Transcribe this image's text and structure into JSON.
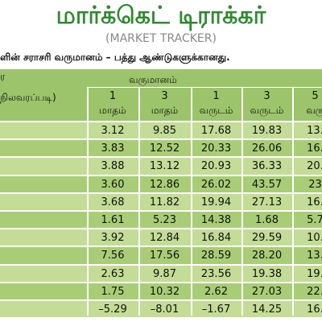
{
  "header": {
    "title": "மார்க்கெட் டிராக்கர்",
    "subtitle": "(MARKET TRACKER)",
    "caption": "ளின் சராசரி வருமானம் – பத்து ஆண்டுகளுக்கானது."
  },
  "table": {
    "corner": "ர",
    "corner_note": "நிலவரப்படி)",
    "group_header": "வருமானம்",
    "columns": [
      [
        "1",
        "மாதம்"
      ],
      [
        "3",
        "மாதம்"
      ],
      [
        "1",
        "வருடம்"
      ],
      [
        "3",
        "வருடம்"
      ],
      [
        "5",
        "வரு"
      ]
    ],
    "rows": [
      [
        "3.12",
        "9.85",
        "17.68",
        "19.83",
        "13."
      ],
      [
        "3.83",
        "12.52",
        "20.33",
        "26.06",
        "16."
      ],
      [
        "3.88",
        "13.12",
        "20.93",
        "36.33",
        "20."
      ],
      [
        "3.60",
        "12.86",
        "26.02",
        "43.57",
        "23"
      ],
      [
        "3.68",
        "11.82",
        "19.94",
        "27.13",
        "16."
      ],
      [
        "1.61",
        "5.23",
        "14.38",
        "1.68",
        "5.7"
      ],
      [
        "3.92",
        "12.84",
        "16.84",
        "29.59",
        "10."
      ],
      [
        "7.56",
        "17.56",
        "28.59",
        "28.20",
        "13."
      ],
      [
        "2.63",
        "9.87",
        "23.56",
        "19.38",
        "19."
      ],
      [
        "1.75",
        "10.32",
        "2.62",
        "27.03",
        "22."
      ],
      [
        "–5.29",
        "–8.01",
        "–1.67",
        "14.25",
        "16."
      ]
    ]
  }
}
